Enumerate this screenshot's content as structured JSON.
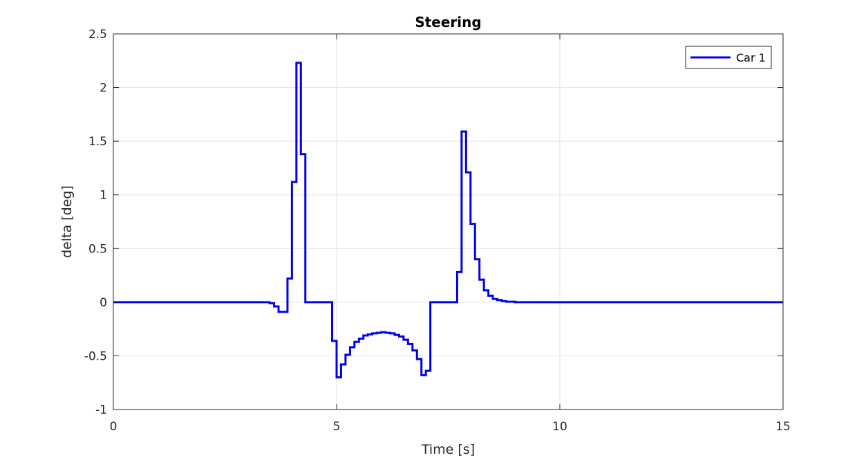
{
  "chart_data": {
    "type": "line",
    "title": "Steering",
    "xlabel": "Time [s]",
    "ylabel": "delta [deg]",
    "xlim": [
      0,
      15
    ],
    "ylim": [
      -1,
      2.5
    ],
    "x_ticks": [
      0,
      5,
      10,
      15
    ],
    "x_tick_labels": [
      "0",
      "5",
      "10",
      "15"
    ],
    "y_ticks": [
      -1,
      -0.5,
      0,
      0.5,
      1,
      1.5,
      2,
      2.5
    ],
    "y_tick_labels": [
      "-1",
      "-0.5",
      "0",
      "0.5",
      "1",
      "1.5",
      "2",
      "2.5"
    ],
    "grid": true,
    "legend_position": "top-right",
    "step": true,
    "series": [
      {
        "name": "Car 1",
        "color": "#0000ee",
        "x": [
          0,
          3.5,
          3.6,
          3.7,
          3.9,
          4.0,
          4.1,
          4.2,
          4.3,
          4.4,
          4.9,
          5.0,
          5.1,
          5.2,
          5.3,
          5.4,
          5.5,
          5.6,
          5.7,
          5.8,
          5.9,
          6.0,
          6.1,
          6.2,
          6.3,
          6.4,
          6.5,
          6.6,
          6.7,
          6.8,
          6.9,
          7.0,
          7.1,
          7.2,
          7.7,
          7.8,
          7.9,
          8.0,
          8.1,
          8.2,
          8.3,
          8.4,
          8.5,
          8.6,
          8.7,
          8.8,
          9.0,
          9.1,
          15
        ],
        "y": [
          0,
          -0.01,
          -0.04,
          -0.09,
          0.22,
          1.12,
          2.23,
          1.38,
          0,
          0,
          -0.36,
          -0.7,
          -0.58,
          -0.49,
          -0.42,
          -0.37,
          -0.34,
          -0.31,
          -0.3,
          -0.29,
          -0.285,
          -0.28,
          -0.285,
          -0.29,
          -0.305,
          -0.32,
          -0.35,
          -0.39,
          -0.45,
          -0.53,
          -0.68,
          -0.64,
          0,
          0,
          0.28,
          1.59,
          1.21,
          0.73,
          0.4,
          0.21,
          0.11,
          0.06,
          0.03,
          0.02,
          0.01,
          0.005,
          0.0,
          0,
          0
        ]
      }
    ]
  }
}
